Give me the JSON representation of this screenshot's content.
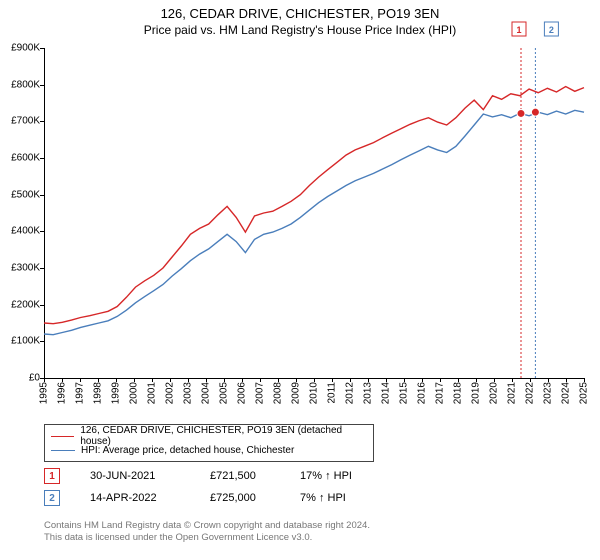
{
  "title": "126, CEDAR DRIVE, CHICHESTER, PO19 3EN",
  "subtitle": "Price paid vs. HM Land Registry's House Price Index (HPI)",
  "chart": {
    "type": "line",
    "background_color": "#ffffff",
    "x_years": [
      1995,
      1996,
      1997,
      1998,
      1999,
      2000,
      2001,
      2002,
      2003,
      2004,
      2005,
      2006,
      2007,
      2008,
      2009,
      2010,
      2011,
      2012,
      2013,
      2014,
      2015,
      2016,
      2017,
      2018,
      2019,
      2020,
      2021,
      2022,
      2023,
      2024,
      2025
    ],
    "ylim": [
      0,
      900000
    ],
    "yticks": [
      0,
      100000,
      200000,
      300000,
      400000,
      500000,
      600000,
      700000,
      800000,
      900000
    ],
    "ytick_labels": [
      "£0",
      "£100K",
      "£200K",
      "£300K",
      "£400K",
      "£500K",
      "£600K",
      "£700K",
      "£800K",
      "£900K"
    ],
    "label_fontsize": 10,
    "title_fontsize": 13,
    "series": [
      {
        "name": "126, CEDAR DRIVE, CHICHESTER, PO19 3EN (detached house)",
        "color": "#d62728",
        "line_width": 1.4,
        "data": [
          150,
          148,
          152,
          158,
          165,
          170,
          176,
          182,
          195,
          220,
          248,
          265,
          280,
          300,
          330,
          360,
          392,
          408,
          420,
          445,
          468,
          438,
          398,
          442,
          450,
          455,
          468,
          482,
          500,
          525,
          548,
          568,
          588,
          608,
          622,
          632,
          642,
          655,
          668,
          680,
          692,
          702,
          710,
          698,
          690,
          710,
          736,
          758,
          732,
          770,
          760,
          775,
          770,
          788,
          778,
          790,
          780,
          795,
          782,
          792
        ]
      },
      {
        "name": "HPI: Average price, detached house, Chichester",
        "color": "#4a7ebb",
        "line_width": 1.4,
        "data": [
          120,
          118,
          124,
          130,
          138,
          144,
          150,
          156,
          168,
          185,
          205,
          222,
          238,
          255,
          278,
          298,
          320,
          338,
          352,
          372,
          392,
          372,
          342,
          378,
          392,
          398,
          408,
          420,
          438,
          458,
          478,
          495,
          510,
          525,
          538,
          548,
          558,
          570,
          582,
          595,
          608,
          620,
          632,
          622,
          615,
          632,
          660,
          690,
          720,
          712,
          718,
          710,
          722,
          715,
          725,
          718,
          728,
          720,
          730,
          725
        ]
      }
    ],
    "sales": [
      {
        "n": "1",
        "date_label": "30-JUN-2021",
        "price_label": "£721,500",
        "rel_label": "17% ↑ HPI",
        "x_year": 2021.5,
        "y_value": 721500,
        "box_color": "#d62728",
        "marker_fill": "#d62728"
      },
      {
        "n": "2",
        "date_label": "14-APR-2022",
        "price_label": "£725,000",
        "rel_label": "7% ↑ HPI",
        "x_year": 2022.3,
        "y_value": 725000,
        "box_color": "#4a7ebb",
        "marker_fill": "#d62728"
      }
    ]
  },
  "attribution": [
    "Contains HM Land Registry data © Crown copyright and database right 2024.",
    "This data is licensed under the Open Government Licence v3.0."
  ]
}
